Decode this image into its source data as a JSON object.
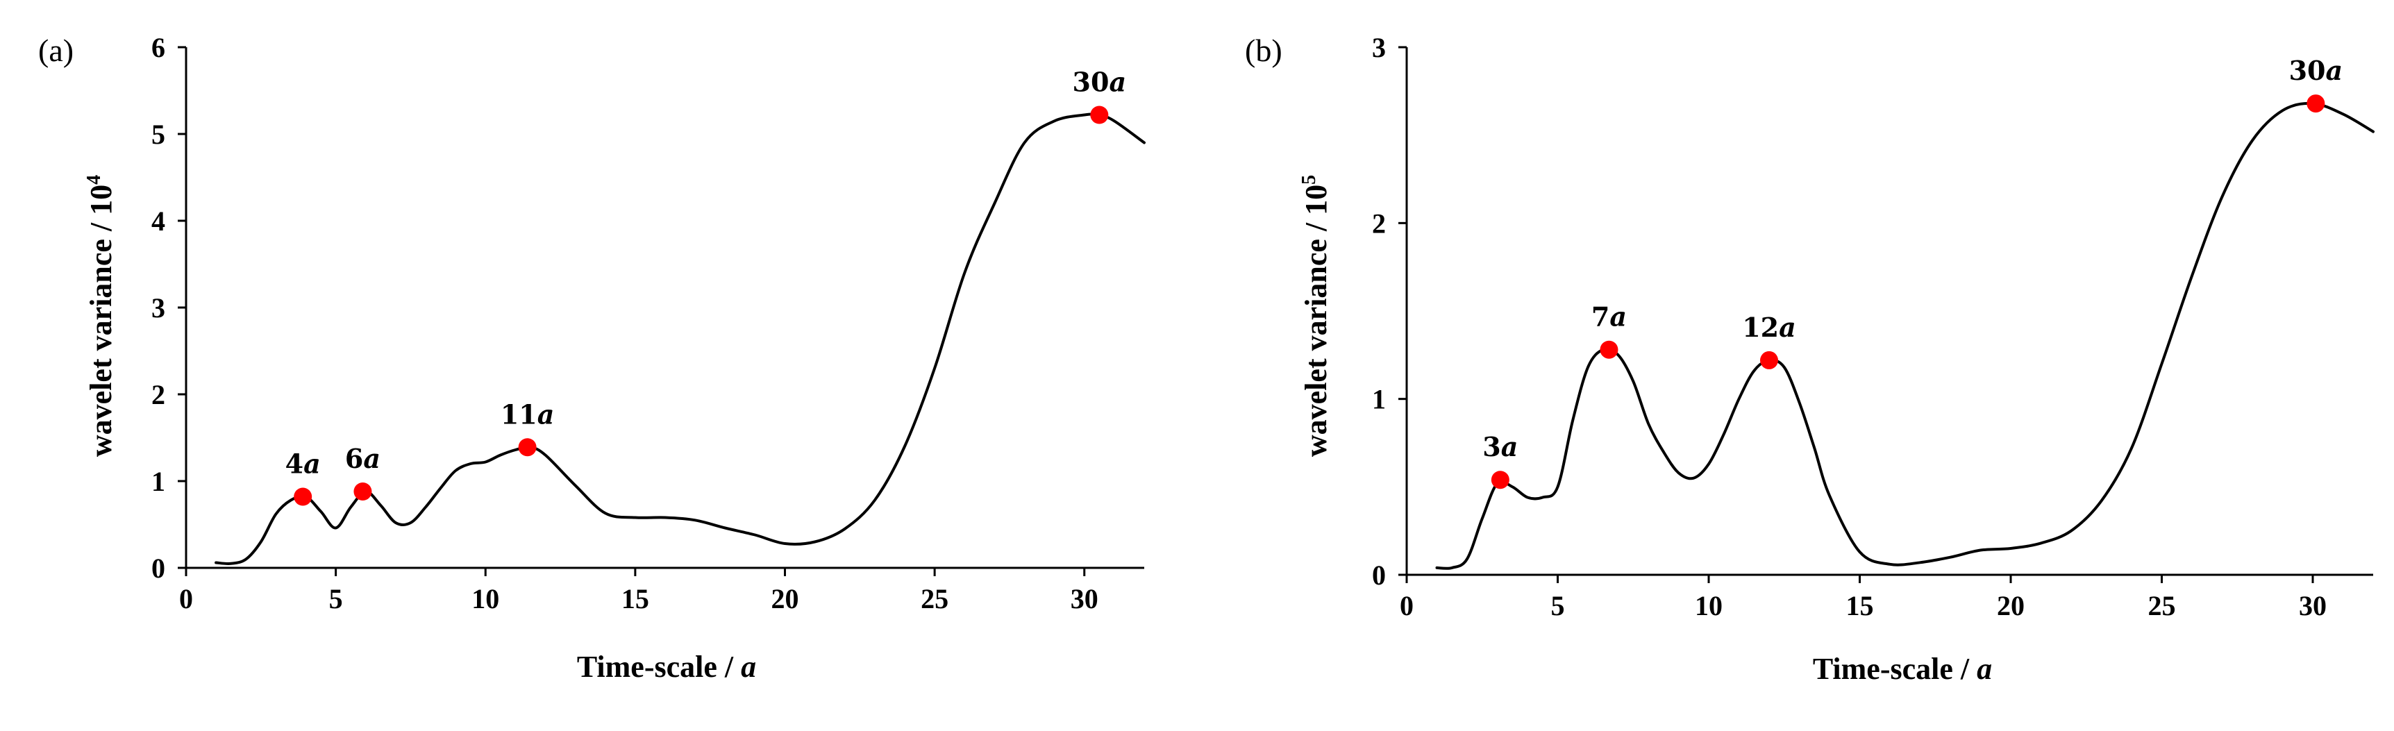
{
  "chart_data": [
    {
      "panel": "(a)",
      "type": "line",
      "xlabel": "Time-scale / a",
      "ylabel": "wavelet variance / 10",
      "ylabel_exponent": "4",
      "xlim": [
        0,
        32
      ],
      "ylim": [
        0,
        6
      ],
      "xticks": [
        0,
        5,
        10,
        15,
        20,
        25,
        30
      ],
      "yticks": [
        0,
        1,
        2,
        3,
        4,
        5,
        6
      ],
      "x": [
        1,
        1.5,
        2,
        2.5,
        3,
        3.5,
        4,
        4.5,
        5,
        5.5,
        6,
        6.5,
        7,
        7.5,
        8,
        8.5,
        9,
        9.5,
        10,
        10.5,
        11,
        11.5,
        12,
        13,
        14,
        15,
        16,
        17,
        18,
        19,
        20,
        21,
        22,
        23,
        24,
        25,
        26,
        27,
        28,
        29,
        30,
        30.5,
        31,
        32
      ],
      "y": [
        0.06,
        0.05,
        0.1,
        0.3,
        0.62,
        0.78,
        0.82,
        0.65,
        0.46,
        0.7,
        0.88,
        0.72,
        0.52,
        0.52,
        0.7,
        0.92,
        1.12,
        1.2,
        1.22,
        1.3,
        1.36,
        1.39,
        1.3,
        0.95,
        0.63,
        0.58,
        0.58,
        0.55,
        0.46,
        0.38,
        0.28,
        0.3,
        0.45,
        0.78,
        1.4,
        2.3,
        3.4,
        4.2,
        4.9,
        5.15,
        5.22,
        5.22,
        5.15,
        4.9
      ],
      "peaks": [
        {
          "label": "4a",
          "x": 3.9,
          "y": 0.82
        },
        {
          "label": "6a",
          "x": 5.9,
          "y": 0.88
        },
        {
          "label": "11a",
          "x": 11.4,
          "y": 1.39
        },
        {
          "label": "30a",
          "x": 30.5,
          "y": 5.22
        }
      ]
    },
    {
      "panel": "(b)",
      "type": "line",
      "xlabel": "Time-scale / a",
      "ylabel": "wavelet variance / 10",
      "ylabel_exponent": "5",
      "xlim": [
        0,
        32
      ],
      "ylim": [
        0,
        3
      ],
      "xticks": [
        0,
        5,
        10,
        15,
        20,
        25,
        30
      ],
      "yticks": [
        0,
        1,
        2,
        3
      ],
      "x": [
        1,
        1.5,
        2,
        2.5,
        3,
        3.5,
        4,
        4.5,
        5,
        5.5,
        6,
        6.5,
        7,
        7.5,
        8,
        8.5,
        9,
        9.5,
        10,
        10.5,
        11,
        11.5,
        12,
        12.5,
        13,
        13.5,
        14,
        15,
        16,
        17,
        18,
        19,
        20,
        21,
        22,
        23,
        24,
        25,
        26,
        27,
        28,
        29,
        30,
        31,
        32
      ],
      "y": [
        0.04,
        0.04,
        0.09,
        0.32,
        0.52,
        0.5,
        0.44,
        0.44,
        0.5,
        0.88,
        1.18,
        1.28,
        1.25,
        1.1,
        0.86,
        0.7,
        0.58,
        0.55,
        0.63,
        0.8,
        1.0,
        1.16,
        1.22,
        1.18,
        0.98,
        0.72,
        0.45,
        0.13,
        0.06,
        0.07,
        0.1,
        0.14,
        0.15,
        0.18,
        0.25,
        0.42,
        0.72,
        1.2,
        1.7,
        2.15,
        2.47,
        2.64,
        2.68,
        2.62,
        2.52
      ],
      "peaks": [
        {
          "label": "3a",
          "x": 3.1,
          "y": 0.54
        },
        {
          "label": "7a",
          "x": 6.7,
          "y": 1.28
        },
        {
          "label": "12a",
          "x": 12.0,
          "y": 1.22
        },
        {
          "label": "30a",
          "x": 30.1,
          "y": 2.68
        }
      ]
    }
  ],
  "colors": {
    "curve": "#000000",
    "peak_marker": "#ff0000",
    "axis": "#000000"
  }
}
